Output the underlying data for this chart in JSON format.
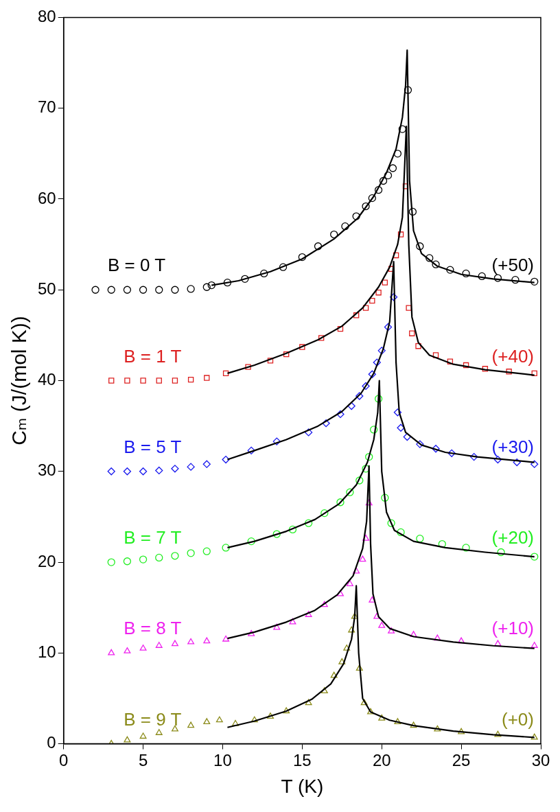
{
  "chart_data": {
    "type": "scatter",
    "xlabel": "T (K)",
    "ylabel": "Cₘ (J/(mol K))",
    "xlim": [
      0,
      30
    ],
    "xticks": [
      0,
      5,
      10,
      15,
      20,
      25,
      30
    ],
    "ylim": [
      0,
      80
    ],
    "yticks": [
      0,
      10,
      20,
      30,
      40,
      50,
      60,
      70,
      80
    ],
    "series": [
      {
        "name": "B = 0 T",
        "color": "#000000",
        "marker": "circle",
        "x": [
          2,
          3,
          4,
          5,
          6,
          7,
          8,
          9,
          9.3,
          10.3,
          11.4,
          12.6,
          13.8,
          15,
          16,
          17,
          17.7,
          18.4,
          19,
          19.4,
          19.8,
          20.1,
          20.4,
          20.7,
          21,
          21.3,
          21.65,
          21.95,
          22.4,
          23,
          23.4,
          24.3,
          25.3,
          26.3,
          27.3,
          28.4,
          29.6
        ],
        "values": [
          50,
          50,
          50,
          50,
          50,
          50,
          50.1,
          50.3,
          50.5,
          50.8,
          51.2,
          51.8,
          52.5,
          53.6,
          54.8,
          56.1,
          57,
          58.1,
          59.2,
          60.1,
          61,
          62,
          62.6,
          63.4,
          65,
          67.7,
          72,
          58.6,
          54.8,
          53.5,
          52.8,
          52.2,
          51.8,
          51.5,
          51.3,
          51.1,
          50.9
        ]
      },
      {
        "name": "B = 1 T",
        "color": "#dd2020",
        "marker": "square",
        "x": [
          3,
          4,
          5,
          6,
          7,
          8,
          9,
          10.2,
          11.6,
          13,
          14,
          15,
          16.2,
          17.4,
          18.4,
          19,
          19.4,
          19.8,
          20.2,
          20.6,
          20.9,
          21.2,
          21.5,
          21.7,
          21.9,
          22.3,
          23.4,
          24.3,
          25.3,
          26.5,
          28,
          29.6
        ],
        "values": [
          40,
          40,
          40,
          40,
          40,
          40.1,
          40.3,
          40.8,
          41.5,
          42.2,
          42.9,
          43.7,
          44.7,
          45.7,
          47.2,
          48,
          48.8,
          49.7,
          50.8,
          52.3,
          53.8,
          56.1,
          61.4,
          48,
          45.2,
          43.8,
          42.8,
          42.1,
          41.7,
          41.3,
          41,
          40.8
        ]
      },
      {
        "name": "B = 5 T",
        "color": "#1a1aee",
        "marker": "diamond",
        "x": [
          3,
          4,
          5,
          6,
          7,
          8,
          9,
          10.2,
          11.8,
          13.4,
          15.4,
          16.5,
          17.4,
          18.1,
          18.6,
          19,
          19.4,
          19.7,
          20,
          20.4,
          20.75,
          21,
          21.2,
          21.6,
          22.4,
          23.4,
          24.4,
          25.8,
          27.3,
          28.5,
          29.6
        ],
        "values": [
          30,
          30,
          30,
          30.1,
          30.3,
          30.5,
          30.8,
          31.3,
          32.3,
          33.3,
          34.3,
          35.3,
          36.3,
          37.2,
          38.3,
          39.4,
          40.7,
          42,
          43.3,
          45.9,
          49.2,
          36.5,
          34.8,
          33.8,
          33,
          32.5,
          32,
          31.6,
          31.3,
          31,
          30.8
        ]
      },
      {
        "name": "B = 7 T",
        "color": "#22ee22",
        "marker": "circle",
        "x": [
          3,
          4,
          5,
          6,
          7,
          8,
          9,
          10.2,
          11.8,
          13.4,
          14.4,
          15.4,
          16.4,
          17.4,
          18,
          18.6,
          19,
          19.2,
          19.5,
          19.8,
          20.2,
          20.6,
          21.2,
          22.4,
          23.8,
          25.3,
          27.5,
          29.6
        ],
        "values": [
          20,
          20.1,
          20.3,
          20.5,
          20.7,
          21,
          21.2,
          21.6,
          22.3,
          23.1,
          23.6,
          24.3,
          25.4,
          26.6,
          27.7,
          29,
          30.3,
          31.6,
          34.6,
          38,
          27.1,
          24.3,
          23.3,
          22.6,
          22,
          21.6,
          21.1,
          20.6
        ]
      },
      {
        "name": "B = 8 T",
        "color": "#ee22ee",
        "marker": "triangle",
        "x": [
          3,
          4,
          5,
          6,
          7,
          8,
          9,
          10.2,
          11.8,
          13.4,
          14.4,
          15.4,
          16.4,
          17.4,
          18,
          18.4,
          18.8,
          19,
          19.2,
          19.4,
          19.7,
          20,
          20.6,
          22,
          23.5,
          25,
          27.3,
          29.6
        ],
        "values": [
          10,
          10.2,
          10.5,
          10.8,
          11,
          11.2,
          11.3,
          11.5,
          12.1,
          12.8,
          13.4,
          14.2,
          15.3,
          16.5,
          17.6,
          19,
          20.3,
          22.6,
          26.5,
          15.8,
          14,
          13,
          12.4,
          12,
          11.6,
          11.3,
          11,
          10.8
        ]
      },
      {
        "name": "B = 9 T",
        "color": "#8b8b1a",
        "marker": "triangle",
        "x": [
          3,
          4,
          5,
          6,
          7,
          8,
          9,
          9.8,
          10.8,
          12,
          13,
          14,
          15.4,
          16.4,
          17,
          17.5,
          17.8,
          18.1,
          18.3,
          18.6,
          18.9,
          19.3,
          20,
          21,
          22,
          23.5,
          25,
          27.3,
          29.6
        ],
        "values": [
          0,
          0.4,
          0.8,
          1.2,
          1.6,
          2,
          2.4,
          2.6,
          2.2,
          2.6,
          3,
          3.6,
          4.5,
          5.8,
          7.5,
          9,
          10.5,
          12.5,
          14,
          8.3,
          4.5,
          3.5,
          2.8,
          2.4,
          2,
          1.6,
          1.3,
          1,
          0.7
        ]
      },
      {
        "type": "line",
        "color": "#000000",
        "marker": "none",
        "x": [
          9.3,
          11,
          13,
          15,
          17,
          18.5,
          19.5,
          20.3,
          20.9,
          21.3,
          21.5,
          21.6,
          21.75,
          22,
          22.5,
          23.5,
          25,
          27,
          29.6
        ],
        "values": [
          50.5,
          51,
          52,
          53.4,
          55.6,
          57.9,
          60.3,
          62.9,
          65.5,
          69,
          72.5,
          76.4,
          62,
          56.5,
          54,
          52.6,
          51.7,
          51.2,
          50.8
        ]
      },
      {
        "type": "line",
        "color": "#000000",
        "marker": "none",
        "x": [
          10.3,
          12,
          14,
          16,
          17.5,
          18.8,
          19.8,
          20.5,
          21,
          21.3,
          21.55,
          21.7,
          21.9,
          22.3,
          23,
          24.5,
          26.5,
          29.6
        ],
        "values": [
          40.8,
          41.7,
          43,
          44.5,
          46,
          48,
          50.3,
          52.5,
          55,
          58,
          68,
          55,
          47,
          44.2,
          42.8,
          41.8,
          41.2,
          40.6
        ]
      },
      {
        "type": "line",
        "color": "#000000",
        "marker": "none",
        "x": [
          10.3,
          12,
          14,
          16,
          17.5,
          18.7,
          19.5,
          20.1,
          20.5,
          20.75,
          20.9,
          21.1,
          21.5,
          22.5,
          24,
          26,
          29.6
        ],
        "values": [
          31.3,
          32.3,
          33.5,
          35,
          36.6,
          38.6,
          40.8,
          43.5,
          46.5,
          53.1,
          42,
          36.5,
          34.3,
          32.9,
          32.1,
          31.6,
          31
        ]
      },
      {
        "type": "line",
        "color": "#000000",
        "marker": "none",
        "x": [
          10.3,
          12,
          14,
          15.8,
          17.3,
          18.4,
          19.1,
          19.5,
          19.75,
          19.85,
          20,
          20.3,
          20.8,
          22,
          24,
          26.5,
          29.6
        ],
        "values": [
          21.6,
          22.3,
          23.4,
          24.7,
          26.4,
          28.5,
          31,
          33.5,
          36.5,
          40,
          30,
          25.5,
          23.5,
          22.3,
          21.6,
          21.1,
          20.6
        ]
      },
      {
        "type": "line",
        "color": "#000000",
        "marker": "none",
        "x": [
          10.3,
          12,
          14,
          15.8,
          17.2,
          18.2,
          18.8,
          19.05,
          19.2,
          19.3,
          19.45,
          19.8,
          20.5,
          22,
          24.5,
          27,
          29.6
        ],
        "values": [
          11.6,
          12.3,
          13.4,
          14.7,
          16.4,
          18.5,
          21.5,
          24.5,
          30.6,
          22,
          16.5,
          14,
          12.7,
          11.8,
          11.2,
          10.8,
          10.5
        ]
      },
      {
        "type": "line",
        "color": "#000000",
        "marker": "none",
        "x": [
          10.3,
          12,
          14,
          15.6,
          16.8,
          17.6,
          18.1,
          18.3,
          18.4,
          18.55,
          18.8,
          19.3,
          20.5,
          22,
          24.5,
          27,
          29.6
        ],
        "values": [
          1.8,
          2.5,
          3.6,
          4.9,
          6.6,
          8.8,
          11.5,
          14,
          17.4,
          10,
          5,
          3.5,
          2.6,
          2,
          1.4,
          1,
          0.7
        ]
      }
    ],
    "annotations": [
      "(+50)",
      "(+40)",
      "(+30)",
      "(+20)",
      "(+10)",
      "(+0)"
    ]
  }
}
